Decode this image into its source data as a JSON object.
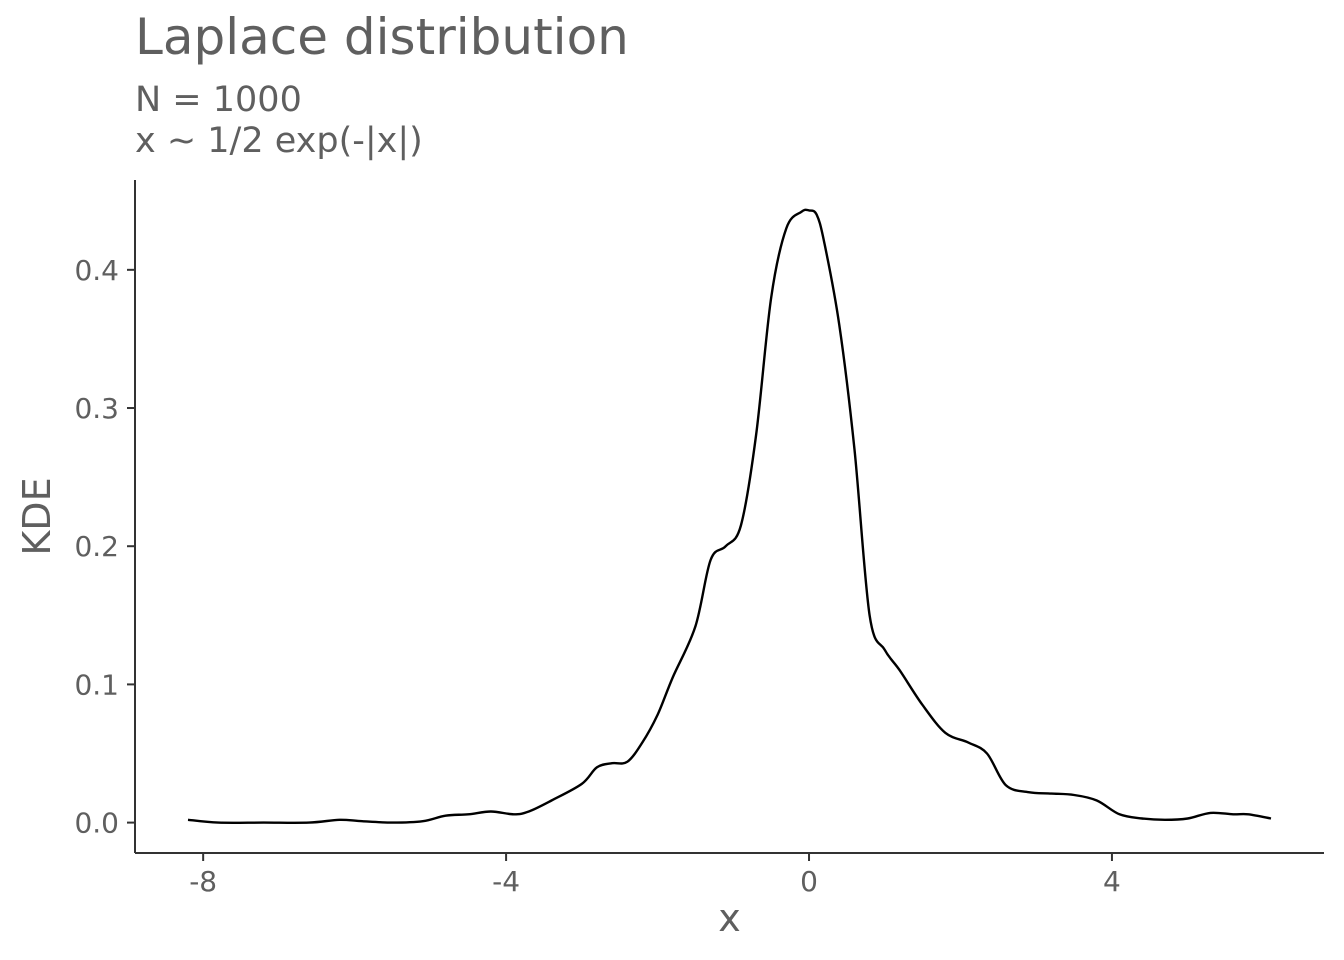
{
  "chart_data": {
    "type": "line",
    "title": "Laplace distribution",
    "subtitle_lines": [
      "N = 1000",
      "x ~ 1/2 exp(-|x|)"
    ],
    "xlabel": "x",
    "ylabel": "KDE",
    "xlim": [
      -8.9,
      6.8
    ],
    "ylim": [
      -0.022,
      0.465
    ],
    "x_ticks": [
      -8,
      -4,
      0,
      4
    ],
    "x_tick_labels": [
      "-8",
      "-4",
      "0",
      "4"
    ],
    "y_ticks": [
      0.0,
      0.1,
      0.2,
      0.3,
      0.4
    ],
    "y_tick_labels": [
      "0.0",
      "0.1",
      "0.2",
      "0.3",
      "0.4"
    ],
    "grid": false,
    "series": [
      {
        "color": "#000000",
        "x": [
          -8.2,
          -7.8,
          -7.2,
          -6.6,
          -6.2,
          -5.9,
          -5.5,
          -5.1,
          -4.8,
          -4.5,
          -4.2,
          -3.9,
          -3.7,
          -3.4,
          -3.0,
          -2.8,
          -2.6,
          -2.4,
          -2.2,
          -2.0,
          -1.8,
          -1.5,
          -1.3,
          -1.1,
          -0.9,
          -0.7,
          -0.5,
          -0.3,
          -0.1,
          0.0,
          0.1,
          0.2,
          0.4,
          0.6,
          0.8,
          1.0,
          1.2,
          1.5,
          1.8,
          2.1,
          2.35,
          2.6,
          2.9,
          3.2,
          3.5,
          3.8,
          4.1,
          4.4,
          4.7,
          5.0,
          5.3,
          5.6,
          5.8,
          6.1
        ],
        "values": [
          0.002,
          0.0,
          0.0,
          0.0,
          0.002,
          0.001,
          0.0,
          0.001,
          0.005,
          0.006,
          0.008,
          0.006,
          0.008,
          0.016,
          0.028,
          0.04,
          0.043,
          0.044,
          0.058,
          0.078,
          0.105,
          0.142,
          0.19,
          0.2,
          0.215,
          0.28,
          0.38,
          0.43,
          0.442,
          0.443,
          0.44,
          0.42,
          0.36,
          0.27,
          0.15,
          0.125,
          0.11,
          0.085,
          0.065,
          0.058,
          0.05,
          0.027,
          0.022,
          0.021,
          0.02,
          0.016,
          0.006,
          0.003,
          0.002,
          0.003,
          0.007,
          0.006,
          0.006,
          0.003
        ]
      }
    ]
  }
}
